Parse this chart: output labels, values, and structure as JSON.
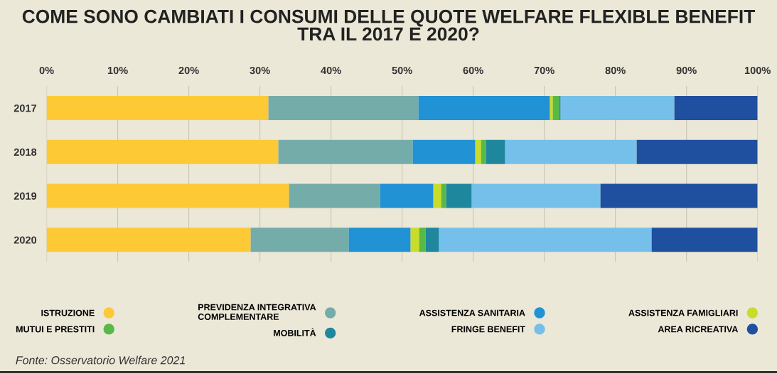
{
  "chart_data": {
    "type": "bar",
    "orientation": "horizontal",
    "stacked": true,
    "title": "COME SONO CAMBIATI I CONSUMI DELLE QUOTE WELFARE FLEXIBLE BENEFIT\nTRA IL 2017 E 2020?",
    "categories": [
      "2017",
      "2018",
      "2019",
      "2020"
    ],
    "series": [
      {
        "name": "ISTRUZIONE",
        "color": "#fdc935",
        "values": [
          31.2,
          32.6,
          34.1,
          28.7
        ]
      },
      {
        "name": "PREVIDENZA INTEGRATIVA\nCOMPLEMENTARE",
        "color": "#74acaa",
        "values": [
          21.1,
          18.9,
          12.8,
          13.8
        ]
      },
      {
        "name": "ASSISTENZA SANITARIA",
        "color": "#2192d4",
        "values": [
          18.5,
          8.8,
          7.5,
          8.7
        ]
      },
      {
        "name": "ASSISTENZA FAMIGLIARI",
        "color": "#c9dc2a",
        "values": [
          0.4,
          0.8,
          1.1,
          1.2
        ]
      },
      {
        "name": "MUTUI E PRESTITI",
        "color": "#58b947",
        "values": [
          0.9,
          0.7,
          0.7,
          0.9
        ]
      },
      {
        "name": "MOBILITÀ",
        "color": "#1e879e",
        "values": [
          0.2,
          2.7,
          3.6,
          1.9
        ]
      },
      {
        "name": "FRINGE BENEFIT",
        "color": "#75c0ea",
        "values": [
          16.0,
          18.5,
          18.1,
          29.9
        ]
      },
      {
        "name": "AREA RICREATIVA",
        "color": "#1f4f9f",
        "values": [
          11.7,
          17.0,
          22.1,
          14.9
        ]
      }
    ],
    "xlim": [
      0,
      100
    ],
    "xticks": [
      {
        "value": 0,
        "label": "0%"
      },
      {
        "value": 10,
        "label": "10%"
      },
      {
        "value": 20,
        "label": "20%"
      },
      {
        "value": 30,
        "label": "30%"
      },
      {
        "value": 40,
        "label": "40%"
      },
      {
        "value": 50,
        "label": "50%"
      },
      {
        "value": 60,
        "label": "60%"
      },
      {
        "value": 70,
        "label": "70%"
      },
      {
        "value": 80,
        "label": "80%"
      },
      {
        "value": 90,
        "label": "90%"
      },
      {
        "value": 100,
        "label": "100%"
      }
    ],
    "grid": "x",
    "legend": "bottom",
    "annotations": [
      "Fonte: Osservatorio Welfare 2021"
    ]
  }
}
